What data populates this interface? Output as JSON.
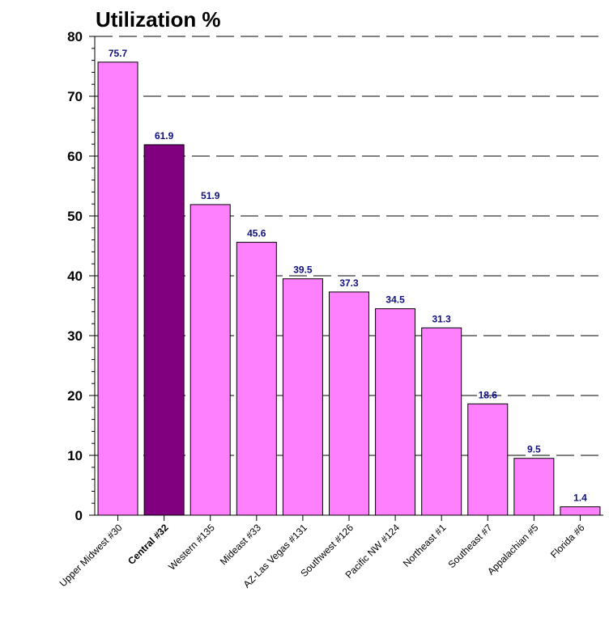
{
  "chart_data": {
    "type": "bar",
    "title": "Utilization %",
    "xlabel": "",
    "ylabel": "",
    "ylim": [
      0,
      80
    ],
    "yticks": [
      0,
      10,
      20,
      30,
      40,
      50,
      60,
      70,
      80
    ],
    "grid": true,
    "categories": [
      "Upper Midwest #30",
      "Central #32",
      "Western #135",
      "Mideast #33",
      "AZ-Las Vegas #131",
      "Southwest #126",
      "Pacific NW #124",
      "Northeast #1",
      "Southeast #7",
      "Appalachian #5",
      "Florida #6"
    ],
    "values": [
      75.7,
      61.9,
      51.9,
      45.6,
      39.5,
      37.3,
      34.5,
      31.3,
      18.6,
      9.5,
      1.4
    ],
    "data_labels": [
      "75.7",
      "61.9",
      "51.9",
      "45.6",
      "39.5",
      "37.3",
      "34.5",
      "31.3",
      "18.6",
      "9.5",
      "1.4"
    ],
    "highlight_category": "Central #32",
    "colors": {
      "bar": "#ff80ff",
      "highlight_bar": "#800080",
      "label": "#101080",
      "grid": "#000000"
    }
  }
}
